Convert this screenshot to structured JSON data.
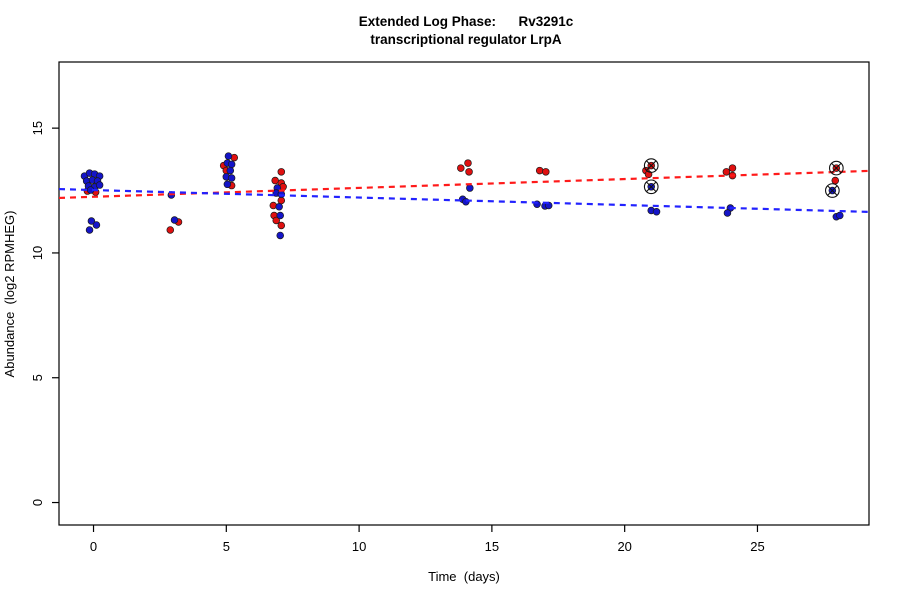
{
  "chart_data": {
    "type": "scatter",
    "title_line1": "Extended Log Phase:      Rv3291c",
    "title_line2": "transcriptional regulator LrpA",
    "xlabel": "Time  (days)",
    "ylabel": "Abundance  (log2 RPMHEG)",
    "xlim": [
      -1.3,
      29.2
    ],
    "ylim": [
      -0.9,
      17.65
    ],
    "xticks": [
      0,
      5,
      10,
      15,
      20,
      25
    ],
    "yticks": [
      0,
      5,
      10,
      15
    ],
    "grid": false,
    "legend": "none",
    "point_colors": {
      "red": "#E01010",
      "blue": "#1414C8"
    },
    "series": [
      {
        "name": "red",
        "color": "#E01010",
        "marker": "circle",
        "points": [
          [
            -0.23,
            12.48
          ],
          [
            0.08,
            12.44
          ],
          [
            3.2,
            11.24
          ],
          [
            2.89,
            10.92
          ],
          [
            5.3,
            13.82
          ],
          [
            4.9,
            13.5
          ],
          [
            5.0,
            13.3
          ],
          [
            5.2,
            12.7
          ],
          [
            7.07,
            13.25
          ],
          [
            6.84,
            12.9
          ],
          [
            7.07,
            12.8
          ],
          [
            7.14,
            12.65
          ],
          [
            7.07,
            12.1
          ],
          [
            6.77,
            11.9
          ],
          [
            6.8,
            11.5
          ],
          [
            6.88,
            11.3
          ],
          [
            7.07,
            11.1
          ],
          [
            14.1,
            13.6
          ],
          [
            13.83,
            13.4
          ],
          [
            14.14,
            13.25
          ],
          [
            16.8,
            13.3
          ],
          [
            17.03,
            13.25
          ],
          [
            21.0,
            13.5
          ],
          [
            20.8,
            13.3
          ],
          [
            20.9,
            13.15
          ],
          [
            24.06,
            13.4
          ],
          [
            23.83,
            13.25
          ],
          [
            24.06,
            13.1
          ],
          [
            27.97,
            13.4
          ],
          [
            27.93,
            12.9
          ]
        ]
      },
      {
        "name": "blue",
        "color": "#1414C8",
        "marker": "circle",
        "points": [
          [
            -0.34,
            13.08
          ],
          [
            -0.15,
            13.2
          ],
          [
            0.04,
            13.16
          ],
          [
            0.23,
            13.08
          ],
          [
            -0.26,
            12.88
          ],
          [
            -0.04,
            12.92
          ],
          [
            0.15,
            12.88
          ],
          [
            -0.19,
            12.68
          ],
          [
            0.04,
            12.64
          ],
          [
            0.23,
            12.72
          ],
          [
            -0.11,
            12.52
          ],
          [
            -0.08,
            11.28
          ],
          [
            0.11,
            11.12
          ],
          [
            -0.15,
            10.92
          ],
          [
            2.93,
            12.32
          ],
          [
            3.05,
            11.32
          ],
          [
            5.08,
            13.88
          ],
          [
            5.04,
            13.6
          ],
          [
            5.2,
            13.55
          ],
          [
            5.15,
            13.3
          ],
          [
            5.0,
            13.05
          ],
          [
            5.2,
            13.0
          ],
          [
            5.04,
            12.75
          ],
          [
            6.92,
            12.6
          ],
          [
            6.88,
            12.4
          ],
          [
            7.07,
            12.35
          ],
          [
            6.99,
            11.85
          ],
          [
            7.03,
            11.5
          ],
          [
            7.03,
            10.7
          ],
          [
            14.17,
            12.6
          ],
          [
            13.9,
            12.15
          ],
          [
            14.02,
            12.05
          ],
          [
            16.7,
            11.95
          ],
          [
            17.0,
            11.88
          ],
          [
            17.14,
            11.9
          ],
          [
            21.0,
            12.65
          ],
          [
            21.0,
            11.7
          ],
          [
            21.2,
            11.65
          ],
          [
            23.98,
            11.8
          ],
          [
            23.87,
            11.6
          ],
          [
            27.82,
            12.5
          ],
          [
            27.97,
            11.45
          ],
          [
            28.1,
            11.5
          ]
        ]
      }
    ],
    "flagged_points": [
      {
        "series": "red",
        "x": 21.0,
        "y": 13.5
      },
      {
        "series": "blue",
        "x": 21.0,
        "y": 12.65
      },
      {
        "series": "red",
        "x": 27.97,
        "y": 13.4
      },
      {
        "series": "blue",
        "x": 27.82,
        "y": 12.5
      }
    ],
    "trend_lines": [
      {
        "series": "red",
        "color": "#FF1A1A",
        "style": "dashed",
        "intercept": 12.25,
        "slope": 0.0355
      },
      {
        "series": "blue",
        "color": "#2222FF",
        "style": "dashed",
        "intercept": 12.52,
        "slope": -0.03
      }
    ]
  }
}
